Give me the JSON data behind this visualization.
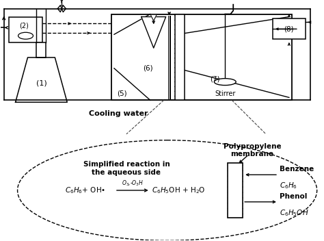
{
  "bg_color": "#ffffff",
  "line_color": "#000000",
  "labels": {
    "1": "(1)",
    "2": "(2)",
    "5": "(5)",
    "6": "(6)",
    "7": "(7)",
    "8": "(8)",
    "stirrer": "Stirrer",
    "cooling_water": "Cooling water",
    "polypropylene": "Polypropylene\nmembrane",
    "benzene_title": "Benzene",
    "benzene_formula": "$C_6H_6$",
    "phenol_title": "Phenol",
    "phenol_formula": "$C_6H_5OH$",
    "simplified": "Simplified reaction in\nthe aqueous side",
    "reaction_left": "$C_6H_6$+ OH•",
    "reaction_arrow_label": "$O_3$,-$O_3$H",
    "reaction_right": "$C_6H_5$OH + H$_2$O"
  }
}
